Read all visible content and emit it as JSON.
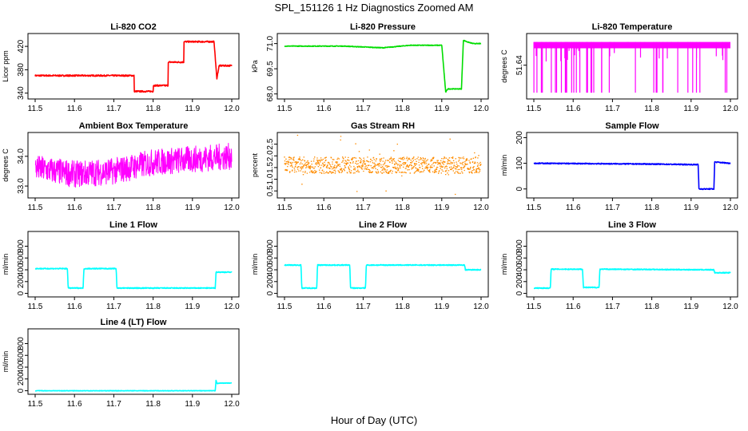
{
  "figure": {
    "title": "SPL_151126  1 Hz Diagnostics Zoomed AM",
    "xlabel": "Hour of Day (UTC)"
  },
  "chart_data": [
    {
      "type": "line",
      "title": "Li-820 CO2",
      "ylabel": "Licor ppm",
      "color": "#ff0000",
      "xlim": [
        11.5,
        12.0
      ],
      "xticks": [
        "11.5",
        "11.6",
        "11.7",
        "11.8",
        "11.9",
        "12.0"
      ],
      "ylim": [
        330,
        442
      ],
      "yticks": [
        "340",
        "380",
        "420"
      ],
      "noise": 1.2,
      "x": [
        11.5,
        11.752,
        11.752,
        11.8,
        11.8,
        11.838,
        11.838,
        11.878,
        11.878,
        11.955,
        11.962,
        11.968,
        12.0
      ],
      "y": [
        370,
        370,
        343,
        343,
        353,
        353,
        393,
        393,
        428,
        428,
        365,
        387,
        387
      ]
    },
    {
      "type": "line",
      "title": "Li-820 Pressure",
      "ylabel": "kPa",
      "color": "#00dd00",
      "xlim": [
        11.5,
        12.0
      ],
      "xticks": [
        "11.5",
        "11.6",
        "11.7",
        "11.8",
        "11.9",
        "12.0"
      ],
      "ylim": [
        67.7,
        71.6
      ],
      "yticks": [
        "68.0",
        "69.5",
        "71.0"
      ],
      "noise": 0.02,
      "x": [
        11.5,
        11.65,
        11.75,
        11.82,
        11.9,
        11.91,
        11.915,
        11.95,
        11.955,
        11.965,
        11.98,
        12.0
      ],
      "y": [
        70.85,
        70.85,
        70.75,
        70.9,
        70.9,
        68.1,
        68.3,
        68.3,
        71.2,
        71.1,
        71.0,
        71.0
      ]
    },
    {
      "type": "line",
      "title": "Li-820 Temperature",
      "ylabel": "degrees C",
      "color": "#ff00ff",
      "xlim": [
        11.5,
        12.0
      ],
      "xticks": [
        "11.5",
        "11.6",
        "11.7",
        "11.8",
        "11.9",
        "12.0"
      ],
      "ylim": [
        51.648,
        51.6325
      ],
      "band": [
        51.6345,
        51.636
      ],
      "spike_to": 51.6465,
      "yticks": [
        "51.63",
        "51.64",
        "51.65"
      ]
    },
    {
      "type": "line",
      "title": "Ambient Box Temperature",
      "ylabel": "degrees C",
      "color": "#ff00ff",
      "xlim": [
        11.5,
        12.0
      ],
      "xticks": [
        "11.5",
        "11.6",
        "11.7",
        "11.8",
        "11.9",
        "12.0"
      ],
      "ylim": [
        32.6,
        34.8
      ],
      "yticks": [
        "33.0",
        "34.0"
      ],
      "noise": 0.45,
      "x": [
        11.5,
        11.6,
        11.7,
        11.8,
        11.9,
        12.0
      ],
      "y": [
        33.6,
        33.4,
        33.5,
        33.8,
        33.9,
        34.0
      ]
    },
    {
      "type": "scatter",
      "title": "Gas Stream RH",
      "ylabel": "percent",
      "color": "#ff8c00",
      "xlim": [
        11.5,
        12.0
      ],
      "xticks": [
        "11.5",
        "11.6",
        "11.7",
        "11.8",
        "11.9",
        "12.0"
      ],
      "ylim": [
        0.2,
        3.0
      ],
      "yticks": [
        "0.5",
        "1.0",
        "1.5",
        "2.0",
        "2.5"
      ],
      "noise": 0.35,
      "x": [
        11.5,
        12.0
      ],
      "y": [
        1.6,
        1.6
      ]
    },
    {
      "type": "line",
      "title": "Sample Flow",
      "ylabel": "ml/min",
      "color": "#0000ff",
      "xlim": [
        11.5,
        12.0
      ],
      "xticks": [
        "11.5",
        "11.6",
        "11.7",
        "11.8",
        "11.9",
        "12.0"
      ],
      "ylim": [
        -35,
        220
      ],
      "yticks": [
        "0",
        "100",
        "200"
      ],
      "noise": 2,
      "x": [
        11.5,
        11.8,
        11.9,
        11.918,
        11.92,
        11.958,
        11.96,
        12.0
      ],
      "y": [
        100,
        97,
        95,
        95,
        0,
        0,
        105,
        100
      ]
    },
    {
      "type": "line",
      "title": "Line 1 Flow",
      "ylabel": "ml/min",
      "color": "#00ffff",
      "xlim": [
        11.5,
        12.0
      ],
      "xticks": [
        "11.5",
        "11.6",
        "11.7",
        "11.8",
        "11.9",
        "12.0"
      ],
      "ylim": [
        -60,
        1050
      ],
      "yticks": [
        "0",
        "200",
        "400",
        "600",
        "800"
      ],
      "noise": 8,
      "x": [
        11.5,
        11.582,
        11.584,
        11.622,
        11.624,
        11.706,
        11.708,
        11.958,
        11.96,
        12.0
      ],
      "y": [
        420,
        420,
        90,
        90,
        420,
        420,
        90,
        90,
        360,
        360
      ]
    },
    {
      "type": "line",
      "title": "Line 2 Flow",
      "ylabel": "ml/min",
      "color": "#00ffff",
      "xlim": [
        11.5,
        12.0
      ],
      "xticks": [
        "11.5",
        "11.6",
        "11.7",
        "11.8",
        "11.9",
        "12.0"
      ],
      "ylim": [
        -60,
        1050
      ],
      "yticks": [
        "0",
        "200",
        "400",
        "600",
        "800"
      ],
      "noise": 8,
      "x": [
        11.5,
        11.542,
        11.544,
        11.582,
        11.584,
        11.666,
        11.668,
        11.706,
        11.708,
        11.958,
        11.96,
        12.0
      ],
      "y": [
        480,
        480,
        90,
        90,
        480,
        480,
        90,
        90,
        480,
        480,
        400,
        400
      ]
    },
    {
      "type": "line",
      "title": "Line 3 Flow",
      "ylabel": "ml/min",
      "color": "#00ffff",
      "xlim": [
        11.5,
        12.0
      ],
      "xticks": [
        "11.5",
        "11.6",
        "11.7",
        "11.8",
        "11.9",
        "12.0"
      ],
      "ylim": [
        -60,
        1050
      ],
      "yticks": [
        "0",
        "200",
        "400",
        "600",
        "800"
      ],
      "noise": 8,
      "x": [
        11.5,
        11.542,
        11.544,
        11.624,
        11.626,
        11.666,
        11.668,
        11.958,
        11.96,
        12.0
      ],
      "y": [
        90,
        90,
        410,
        410,
        100,
        100,
        410,
        400,
        350,
        350
      ]
    },
    {
      "type": "line",
      "title": "Line 4 (LT) Flow",
      "ylabel": "ml/min",
      "color": "#00ffff",
      "xlim": [
        11.5,
        12.0
      ],
      "xticks": [
        "11.5",
        "11.6",
        "11.7",
        "11.8",
        "11.9",
        "12.0"
      ],
      "ylim": [
        -60,
        1050
      ],
      "yticks": [
        "0",
        "200",
        "400",
        "600",
        "800"
      ],
      "noise": 4,
      "x": [
        11.5,
        11.958,
        11.96,
        11.963,
        11.97,
        12.0
      ],
      "y": [
        0,
        0,
        180,
        120,
        130,
        130
      ]
    }
  ]
}
